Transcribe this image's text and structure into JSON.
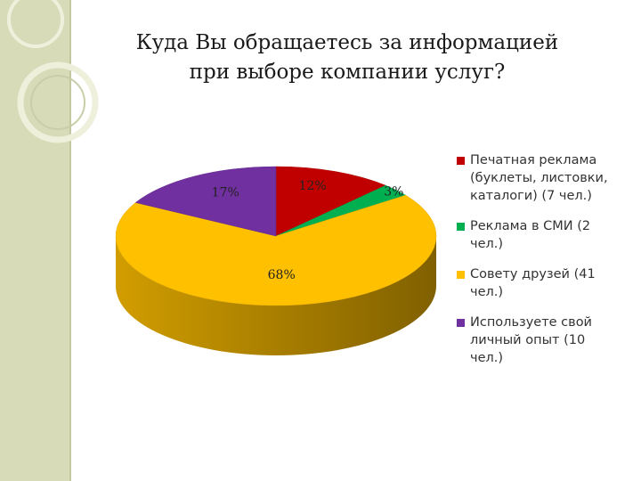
{
  "chart_data": {
    "type": "pie",
    "title_lines": [
      "Куда Вы обращаетесь за информацией",
      "при выборе компании услуг?"
    ],
    "legend_position": "right",
    "slices": [
      {
        "label_lines": [
          "Печатная реклама",
          "(буклеты, листовки,",
          "каталоги) (7 чел.)"
        ],
        "value": 12,
        "value_label": "12%",
        "color": "#c00000"
      },
      {
        "label_lines": [
          "Реклама в СМИ (2",
          "чел.)"
        ],
        "value": 3,
        "value_label": "3%",
        "color": "#00b050"
      },
      {
        "label_lines": [
          "Совету друзей (41",
          "чел.)"
        ],
        "value": 68,
        "value_label": "68%",
        "color": "#ffc000"
      },
      {
        "label_lines": [
          "Используете свой",
          "личный опыт (10",
          "чел.)"
        ],
        "value": 17,
        "value_label": "17%",
        "color": "#7030a0"
      }
    ]
  }
}
